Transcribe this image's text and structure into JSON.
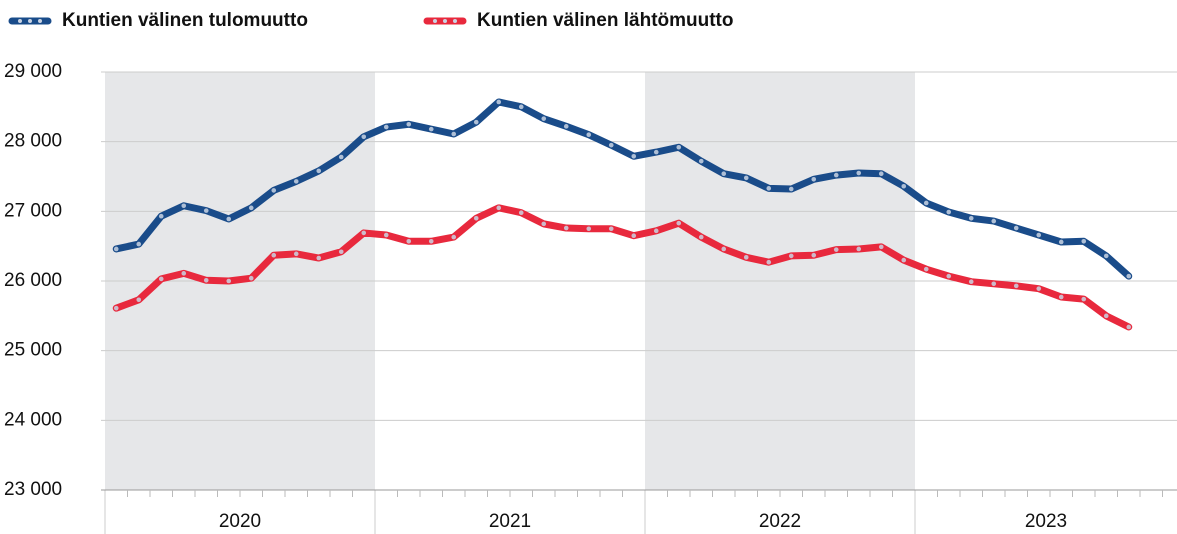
{
  "chart_data": {
    "type": "line",
    "categories": [
      null,
      null,
      null,
      null,
      null,
      null,
      null,
      null,
      null,
      null,
      null,
      null,
      null,
      null,
      null,
      null,
      null,
      null,
      null,
      null,
      null,
      null,
      null,
      null,
      null,
      null,
      null,
      null,
      null,
      null,
      null,
      null,
      null,
      null,
      null,
      null,
      null,
      null,
      null,
      null,
      null,
      null,
      null,
      null,
      null,
      null
    ],
    "groups": [
      "2020",
      "2021",
      "2022",
      "2023"
    ],
    "shaded_groups": [
      true,
      false,
      true,
      false
    ],
    "series": [
      {
        "name": "Kuntien välinen tulomuutto",
        "color": "#1a4c8a",
        "values": [
          26460,
          26530,
          26930,
          27080,
          27010,
          26890,
          27050,
          27300,
          27430,
          27580,
          27780,
          28070,
          28210,
          28250,
          28180,
          28110,
          28280,
          28570,
          28500,
          28330,
          28220,
          28100,
          27950,
          27790,
          27850,
          27920,
          27720,
          27540,
          27480,
          27330,
          27320,
          27460,
          27520,
          27550,
          27540,
          27360,
          27120,
          26990,
          26900,
          26860,
          26760,
          26660,
          26560,
          26570,
          26360,
          26070
        ]
      },
      {
        "name": "Kuntien välinen lähtömuutto",
        "color": "#e8293d",
        "values": [
          25610,
          25730,
          26030,
          26110,
          26010,
          26000,
          26040,
          26370,
          26390,
          26330,
          26420,
          26690,
          26660,
          26570,
          26570,
          26630,
          26900,
          27050,
          26980,
          26820,
          26760,
          26750,
          26750,
          26650,
          26720,
          26830,
          26630,
          26460,
          26340,
          26270,
          26360,
          26370,
          26450,
          26460,
          26490,
          26300,
          26170,
          26070,
          25990,
          25960,
          25930,
          25890,
          25770,
          25740,
          25500,
          25340
        ]
      }
    ],
    "ylim": [
      23000,
      29000
    ],
    "yticks": [
      {
        "value": 23000,
        "label": "23 000"
      },
      {
        "value": 24000,
        "label": "24 000"
      },
      {
        "value": 25000,
        "label": "25 000"
      },
      {
        "value": 26000,
        "label": "26 000"
      },
      {
        "value": 27000,
        "label": "27 000"
      },
      {
        "value": 28000,
        "label": "28 000"
      },
      {
        "value": 29000,
        "label": "29 000"
      }
    ],
    "grid": true
  }
}
